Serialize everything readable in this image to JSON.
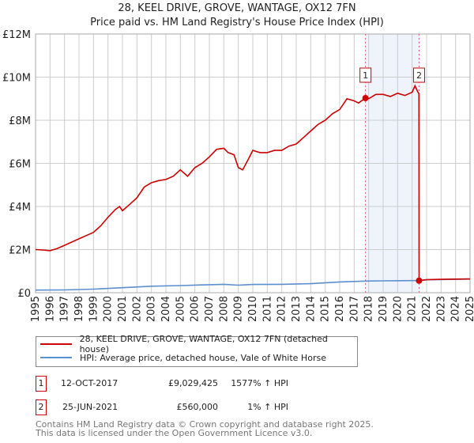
{
  "title_line1": "28, KEEL DRIVE, GROVE, WANTAGE, OX12 7FN",
  "title_line2": "Price paid vs. HM Land Registry's House Price Index (HPI)",
  "chart_data": {
    "type": "line",
    "title": "28, KEEL DRIVE, GROVE, WANTAGE, OX12 7FN — Price paid vs. HM Land Registry's House Price Index (HPI)",
    "xlim": [
      1995,
      2025
    ],
    "ylim": [
      0,
      12000000
    ],
    "y_ticks": [
      {
        "v": 0,
        "label": "£0"
      },
      {
        "v": 2000000,
        "label": "£2M"
      },
      {
        "v": 4000000,
        "label": "£4M"
      },
      {
        "v": 6000000,
        "label": "£6M"
      },
      {
        "v": 8000000,
        "label": "£8M"
      },
      {
        "v": 10000000,
        "label": "£10M"
      },
      {
        "v": 12000000,
        "label": "£12M"
      }
    ],
    "x_ticks": [
      "1995",
      "1996",
      "1997",
      "1998",
      "1999",
      "2000",
      "2001",
      "2002",
      "2003",
      "2004",
      "2005",
      "2006",
      "2007",
      "2008",
      "2009",
      "2010",
      "2011",
      "2012",
      "2013",
      "2014",
      "2015",
      "2016",
      "2017",
      "2018",
      "2019",
      "2020",
      "2021",
      "2022",
      "2023",
      "2024",
      "2025"
    ],
    "grid": true,
    "shaded_range": [
      2017.78,
      2021.48
    ],
    "series": [
      {
        "name": "28, KEEL DRIVE, GROVE, WANTAGE, OX12 7FN (detached house)",
        "color": "#cc0000",
        "x": [
          1995,
          1995.5,
          1996,
          1996.5,
          1997,
          1997.5,
          1998,
          1998.5,
          1999,
          1999.5,
          2000,
          2000.5,
          2000.8,
          2001,
          2001.5,
          2002,
          2002.5,
          2003,
          2003.5,
          2004,
          2004.5,
          2005,
          2005.5,
          2006,
          2006.5,
          2007,
          2007.5,
          2008,
          2008.3,
          2008.7,
          2009,
          2009.3,
          2009.7,
          2010,
          2010.5,
          2011,
          2011.5,
          2012,
          2012.5,
          2013,
          2013.5,
          2014,
          2014.5,
          2015,
          2015.5,
          2016,
          2016.5,
          2017,
          2017.3,
          2017.78,
          2018,
          2018.5,
          2019,
          2019.5,
          2020,
          2020.5,
          2021,
          2021.2,
          2021.4,
          2021.47,
          2021.48,
          2022,
          2023,
          2024,
          2025
        ],
        "y": [
          2000000,
          1980000,
          1950000,
          2050000,
          2200000,
          2350000,
          2500000,
          2650000,
          2800000,
          3100000,
          3500000,
          3850000,
          4000000,
          3800000,
          4100000,
          4400000,
          4900000,
          5100000,
          5200000,
          5250000,
          5400000,
          5700000,
          5400000,
          5800000,
          6000000,
          6300000,
          6650000,
          6700000,
          6500000,
          6400000,
          5800000,
          5700000,
          6200000,
          6600000,
          6500000,
          6500000,
          6600000,
          6600000,
          6800000,
          6900000,
          7200000,
          7500000,
          7800000,
          8000000,
          8300000,
          8500000,
          9000000,
          8900000,
          8800000,
          9029425,
          9000000,
          9200000,
          9200000,
          9100000,
          9250000,
          9150000,
          9300000,
          9600000,
          9300000,
          9250000,
          560000,
          600000,
          620000,
          630000,
          640000
        ]
      },
      {
        "name": "HPI: Average price, detached house, Vale of White Horse",
        "color": "#5b8fd0",
        "x": [
          1995,
          1997,
          1999,
          2001,
          2003,
          2005,
          2007,
          2008,
          2009,
          2010,
          2012,
          2014,
          2016,
          2017.78,
          2019,
          2021,
          2021.48,
          2022,
          2023,
          2024,
          2025
        ],
        "y": [
          120000,
          130000,
          165000,
          230000,
          300000,
          330000,
          370000,
          390000,
          350000,
          380000,
          390000,
          420000,
          500000,
          540000,
          550000,
          560000,
          560000,
          600000,
          610000,
          620000,
          630000
        ]
      }
    ],
    "sales": [
      {
        "id": "1",
        "date": "12-OCT-2017",
        "price": "£9,029,425",
        "hpi": "1577% ↑ HPI",
        "x": 2017.78,
        "y": 9029425
      },
      {
        "id": "2",
        "date": "25-JUN-2021",
        "price": "£560,000",
        "hpi": "1% ↑ HPI",
        "x": 2021.48,
        "y": 560000
      }
    ]
  },
  "legend": {
    "red": "28, KEEL DRIVE, GROVE, WANTAGE, OX12 7FN (detached house)",
    "blue": "HPI: Average price, detached house, Vale of White Horse"
  },
  "footer": {
    "line1": "Contains HM Land Registry data © Crown copyright and database right 2025.",
    "line2": "This data is licensed under the Open Government Licence v3.0."
  }
}
